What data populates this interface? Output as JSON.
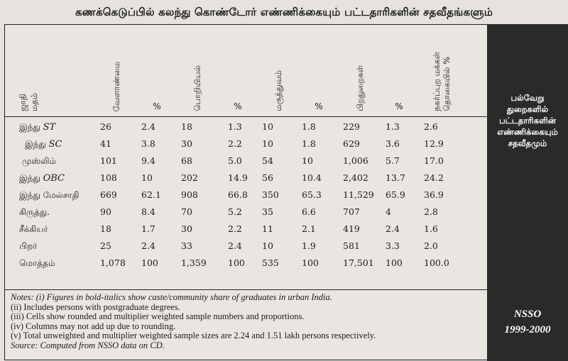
{
  "title": "கணக்கெடுப்பில் கலந்து கொண்டோர் எண்ணிக்கையும் பட்டதாரிகளின் சதவீதங்களும்",
  "headers": [
    [
      "ஜாதி",
      "மதம்"
    ],
    "வேளாண்மை",
    "%",
    "பொறியியல்",
    "%",
    "மருத்துவம்",
    "%",
    "பிறதுறைகள்",
    "%",
    [
      "நகர்ப்புற மக்கள்",
      "தொகையில் %"
    ]
  ],
  "rows": [
    {
      "group": "இந்து",
      "group_italic": "ST",
      "values": [
        "26",
        "2.4",
        "18",
        "1.3",
        "10",
        "1.8",
        "229",
        "1.3",
        "2.6"
      ]
    },
    {
      "group": "இந்து",
      "group_italic": "SC",
      "values": [
        "41",
        "3.8",
        "30",
        "2.2",
        "10",
        "1.8",
        "629",
        "3.6",
        "12.9"
      ]
    },
    {
      "group": "முஸ்லிம்",
      "group_italic": "",
      "values": [
        "101",
        "9.4",
        "68",
        "5.0",
        "54",
        "10",
        "1,006",
        "5.7",
        "17.0"
      ]
    },
    {
      "group": "இந்து",
      "group_italic": "OBC",
      "values": [
        "108",
        "10",
        "202",
        "14.9",
        "56",
        "10.4",
        "2,402",
        "13.7",
        "24.2"
      ]
    },
    {
      "group": "இந்து மேல்சாதி",
      "group_italic": "",
      "values": [
        "669",
        "62.1",
        "908",
        "66.8",
        "350",
        "65.3",
        "11,529",
        "65.9",
        "36.9"
      ]
    },
    {
      "group": "கிருத்து.",
      "group_italic": "",
      "values": [
        "90",
        "8.4",
        "70",
        "5.2",
        "35",
        "6.6",
        "707",
        "4",
        "2.8"
      ]
    },
    {
      "group": "சீக்கியர்",
      "group_italic": "",
      "values": [
        "18",
        "1.7",
        "30",
        "2.2",
        "11",
        "2.1",
        "419",
        "2.4",
        "1.6"
      ]
    },
    {
      "group": "பிறர்",
      "group_italic": "",
      "values": [
        "25",
        "2.4",
        "33",
        "2.4",
        "10",
        "1.9",
        "581",
        "3.3",
        "2.0"
      ]
    },
    {
      "group": "மொத்தம்",
      "group_italic": "",
      "values": [
        "1,078",
        "100",
        "1,359",
        "100",
        "535",
        "100",
        "17,501",
        "100",
        "100.0"
      ]
    }
  ],
  "notes": [
    "Notes: (i) Figures in bold-italics show caste/community share of graduates in urban India.",
    "(ii) Includes persons with postgraduate degrees.",
    "(iii) Cells show rounded and multiplier weighted sample numbers and proportions.",
    "(iv) Columns may not add up due to rounding.",
    "(v) Total unweighted and multiplier weighted sample sizes are 2.24 and 1.51 lakh persons respectively.",
    "Source: Computed from NSSO data on CD."
  ],
  "side_panel": {
    "heading": [
      "பல்வேறு",
      "துறைகளில்",
      "பட்டதாரிகளின்",
      "எண்ணிக்கையும்",
      "சதவீதமும்"
    ],
    "source": [
      "NSSO",
      "1999-2000"
    ]
  },
  "colors": {
    "page_bg": "#e6e3de",
    "panel_bg": "#2a2a2a",
    "panel_text": "#ffffff",
    "rule": "#222222"
  }
}
